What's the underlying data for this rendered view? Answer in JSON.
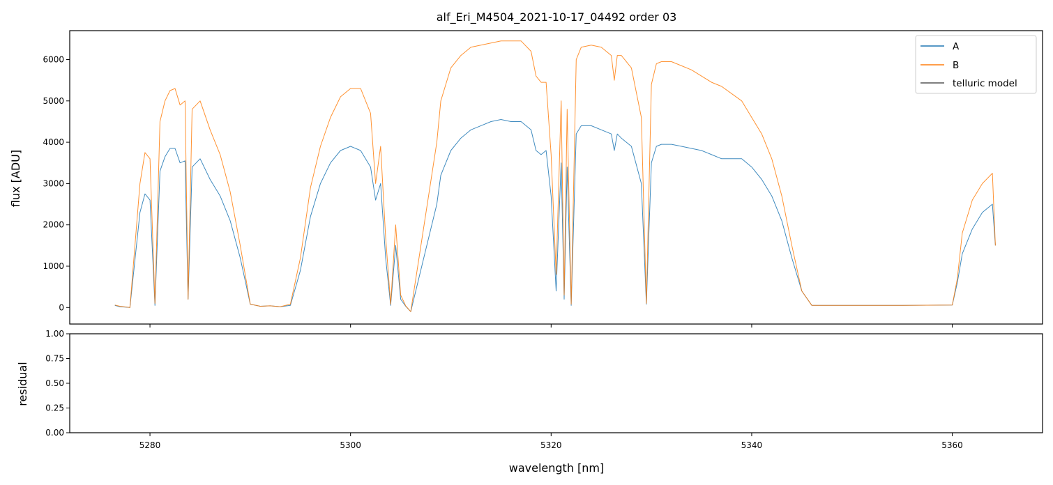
{
  "chart_data": [
    {
      "type": "line",
      "title": "alf_Eri_M4504_2021-10-17_04492  order 03",
      "ylabel": "flux [ADU]",
      "xlim": [
        5272,
        5369
      ],
      "ylim": [
        -400,
        6700
      ],
      "xticks": [
        5280,
        5300,
        5320,
        5340,
        5360
      ],
      "yticks": [
        0,
        1000,
        2000,
        3000,
        4000,
        5000,
        6000
      ],
      "ytick_labels": [
        "0",
        "1000",
        "2000",
        "3000",
        "4000",
        "5000",
        "6000"
      ],
      "legend": {
        "placement": "top-right",
        "entries": [
          "A",
          "B",
          "telluric model"
        ]
      },
      "series": [
        {
          "name": "A",
          "color": "#1f77b4",
          "x": [
            5276.5,
            5277.0,
            5278.0,
            5279.0,
            5279.5,
            5280.0,
            5280.5,
            5281.0,
            5281.5,
            5282.0,
            5282.5,
            5283.0,
            5283.5,
            5283.8,
            5284.2,
            5285.0,
            5286.0,
            5287.0,
            5288.0,
            5289.0,
            5290.0,
            5291.0,
            5292.0,
            5293.0,
            5294.0,
            5295.0,
            5296.0,
            5297.0,
            5298.0,
            5299.0,
            5300.0,
            5301.0,
            5302.0,
            5302.5,
            5303.0,
            5303.5,
            5304.0,
            5304.5,
            5305.0,
            5305.5,
            5306.0,
            5308.6,
            5309.0,
            5310.0,
            5311.0,
            5312.0,
            5313.0,
            5314.0,
            5315.0,
            5316.0,
            5317.0,
            5318.0,
            5318.5,
            5319.0,
            5319.5,
            5320.0,
            5320.5,
            5321.0,
            5321.3,
            5321.6,
            5322.0,
            5322.5,
            5323.0,
            5324.0,
            5325.0,
            5326.0,
            5326.3,
            5326.6,
            5327.0,
            5328.0,
            5329.0,
            5329.5,
            5330.0,
            5330.5,
            5331.0,
            5332.0,
            5333.0,
            5334.0,
            5335.0,
            5336.0,
            5337.0,
            5339.0,
            5340.0,
            5341.0,
            5342.0,
            5343.0,
            5344.0,
            5345.0,
            5346.0,
            5347.0,
            5350.0,
            5355.0,
            5360.0,
            5360.5,
            5361.0,
            5362.0,
            5363.0,
            5364.0,
            5364.3
          ],
          "values": [
            50,
            20,
            0,
            2300,
            2750,
            2600,
            50,
            3300,
            3650,
            3850,
            3850,
            3500,
            3550,
            200,
            3400,
            3600,
            3100,
            2700,
            2100,
            1200,
            80,
            30,
            40,
            20,
            50,
            900,
            2200,
            3000,
            3500,
            3800,
            3900,
            3800,
            3400,
            2600,
            3000,
            1200,
            50,
            1500,
            200,
            30,
            -100,
            2500,
            3200,
            3800,
            4100,
            4300,
            4400,
            4500,
            4550,
            4500,
            4500,
            4300,
            3800,
            3700,
            3800,
            2700,
            400,
            3500,
            200,
            3400,
            50,
            4200,
            4400,
            4400,
            4300,
            4200,
            3800,
            4200,
            4100,
            3900,
            3000,
            80,
            3500,
            3900,
            3950,
            3950,
            3900,
            3850,
            3800,
            3700,
            3600,
            3600,
            3400,
            3100,
            2700,
            2100,
            1200,
            400,
            50,
            50,
            50,
            50,
            60,
            600,
            1300,
            1900,
            2300,
            2500,
            1500
          ]
        },
        {
          "name": "B",
          "color": "#ff7f0e",
          "x": [
            5276.5,
            5277.0,
            5278.0,
            5279.0,
            5279.5,
            5280.0,
            5280.5,
            5281.0,
            5281.5,
            5282.0,
            5282.5,
            5283.0,
            5283.5,
            5283.8,
            5284.2,
            5285.0,
            5286.0,
            5287.0,
            5288.0,
            5289.0,
            5290.0,
            5291.0,
            5292.0,
            5293.0,
            5294.0,
            5295.0,
            5296.0,
            5297.0,
            5298.0,
            5299.0,
            5300.0,
            5301.0,
            5302.0,
            5302.5,
            5303.0,
            5303.5,
            5304.0,
            5304.5,
            5305.0,
            5305.5,
            5306.0,
            5308.6,
            5309.0,
            5310.0,
            5311.0,
            5312.0,
            5313.0,
            5314.0,
            5315.0,
            5316.0,
            5317.0,
            5318.0,
            5318.5,
            5319.0,
            5319.5,
            5320.0,
            5320.5,
            5321.0,
            5321.3,
            5321.6,
            5322.0,
            5322.5,
            5323.0,
            5324.0,
            5325.0,
            5326.0,
            5326.3,
            5326.6,
            5327.0,
            5328.0,
            5329.0,
            5329.5,
            5330.0,
            5330.5,
            5331.0,
            5332.0,
            5333.0,
            5334.0,
            5335.0,
            5336.0,
            5337.0,
            5339.0,
            5340.0,
            5341.0,
            5342.0,
            5343.0,
            5344.0,
            5345.0,
            5346.0,
            5347.0,
            5350.0,
            5355.0,
            5360.0,
            5360.5,
            5361.0,
            5362.0,
            5363.0,
            5364.0,
            5364.3
          ],
          "values": [
            60,
            30,
            0,
            3000,
            3750,
            3600,
            100,
            4500,
            5000,
            5250,
            5300,
            4900,
            5000,
            200,
            4800,
            5000,
            4300,
            3700,
            2800,
            1500,
            80,
            30,
            40,
            20,
            80,
            1200,
            2900,
            3900,
            4600,
            5100,
            5300,
            5300,
            4700,
            3000,
            3900,
            1700,
            80,
            2000,
            300,
            40,
            -100,
            4000,
            5000,
            5800,
            6100,
            6300,
            6350,
            6400,
            6450,
            6450,
            6450,
            6200,
            5600,
            5450,
            5450,
            3700,
            800,
            5000,
            300,
            4800,
            80,
            6000,
            6300,
            6350,
            6300,
            6100,
            5500,
            6100,
            6100,
            5800,
            4600,
            100,
            5400,
            5900,
            5950,
            5950,
            5850,
            5750,
            5600,
            5450,
            5350,
            5000,
            4600,
            4200,
            3600,
            2700,
            1500,
            400,
            50,
            50,
            50,
            50,
            60,
            700,
            1800,
            2600,
            3000,
            3250,
            1500
          ]
        },
        {
          "name": "telluric model",
          "color": "#555555",
          "x": [],
          "values": []
        }
      ]
    },
    {
      "type": "line",
      "ylabel": "residual",
      "xlabel": "wavelength [nm]",
      "xlim": [
        5272,
        5369
      ],
      "ylim": [
        0.0,
        1.0
      ],
      "xticks": [
        5280,
        5300,
        5320,
        5340,
        5360
      ],
      "xtick_labels": [
        "5280",
        "5300",
        "5320",
        "5340",
        "5360"
      ],
      "yticks": [
        0.0,
        0.25,
        0.5,
        0.75,
        1.0
      ],
      "ytick_labels": [
        "0.00",
        "0.25",
        "0.50",
        "0.75",
        "1.00"
      ],
      "series": []
    }
  ]
}
